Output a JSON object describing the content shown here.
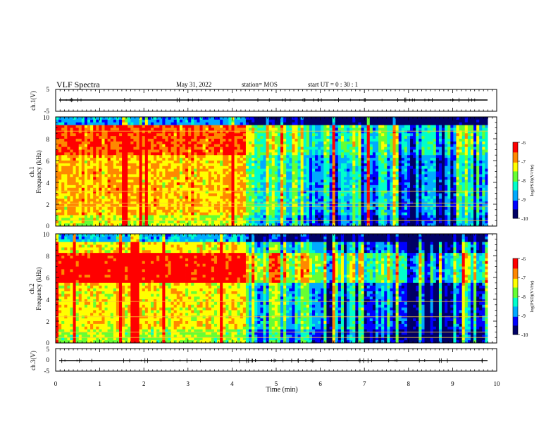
{
  "header": {
    "title": "VLF Spectra",
    "date": "May 31, 2022",
    "station": "station= MOS",
    "start": "start  UT =   0 : 30 : 1"
  },
  "chart_data": [
    {
      "type": "line",
      "name": "ch1-voltage",
      "ylabel": "ch.1(V)",
      "ylim": [
        -5,
        5
      ],
      "yticks": [
        "5",
        "-5"
      ],
      "xlim": [
        0,
        10
      ],
      "baseline": 0
    },
    {
      "type": "heatmap",
      "name": "ch1-spectrogram",
      "ylabel": "ch.1\nFrequency  (kHz)",
      "ylim": [
        0,
        10
      ],
      "yticks": [
        "0",
        "2",
        "4",
        "6",
        "8",
        "10"
      ],
      "xlim": [
        0,
        10
      ],
      "x_end": 9.8,
      "colorbar": {
        "label": "log(PSD)(V²/Hz)",
        "range": [
          -10,
          -6
        ],
        "ticks": [
          "-6",
          "-7",
          "-8",
          "-9",
          "-10"
        ]
      }
    },
    {
      "type": "heatmap",
      "name": "ch2-spectrogram",
      "ylabel": "ch.2\nFrequency  (kHz)",
      "ylim": [
        0,
        10
      ],
      "yticks": [
        "0",
        "2",
        "4",
        "6",
        "8",
        "10"
      ],
      "xlim": [
        0,
        10
      ],
      "x_end": 9.8,
      "colorbar": {
        "label": "log(PSD)(V²/Hz)",
        "range": [
          -10,
          -6
        ],
        "ticks": [
          "-6",
          "-7",
          "-8",
          "-9",
          "-10"
        ]
      }
    },
    {
      "type": "line",
      "name": "ch3-voltage",
      "ylabel": "ch.3(V)",
      "ylim": [
        -5,
        5
      ],
      "yticks": [
        "5",
        "0",
        "-5"
      ],
      "xlim": [
        0,
        10
      ],
      "baseline": 0
    }
  ],
  "xaxis": {
    "label": "Time  (min)",
    "ticks": [
      "0",
      "1",
      "2",
      "3",
      "4",
      "5",
      "6",
      "7",
      "8",
      "9",
      "10"
    ]
  },
  "colors": {
    "colormap": [
      "#000066",
      "#0000ff",
      "#00aaff",
      "#00ffcc",
      "#66ff33",
      "#ffff00",
      "#ff8800",
      "#ff0000",
      "#ffffff"
    ]
  }
}
